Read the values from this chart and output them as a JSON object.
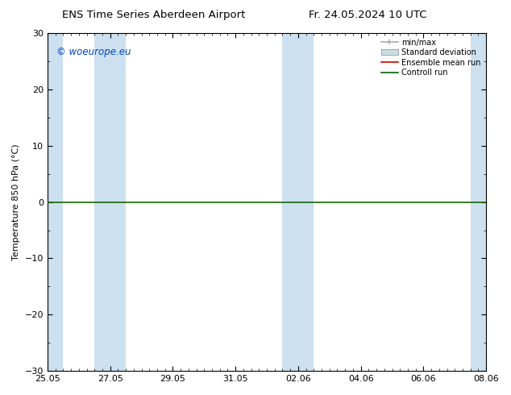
{
  "title_left": "ENS Time Series Aberdeen Airport",
  "title_right": "Fr. 24.05.2024 10 UTC",
  "ylabel": "Temperature 850 hPa (°C)",
  "ylim": [
    -30,
    30
  ],
  "yticks": [
    -30,
    -20,
    -10,
    0,
    10,
    20,
    30
  ],
  "xtick_labels": [
    "25.05",
    "27.05",
    "29.05",
    "31.05",
    "02.06",
    "04.06",
    "06.06",
    "08.06"
  ],
  "xtick_positions": [
    0,
    2,
    4,
    6,
    8,
    10,
    12,
    14
  ],
  "xlim": [
    0,
    14
  ],
  "watermark": "© woeurope.eu",
  "band_color": "#cce0f0",
  "background_color": "#ffffff",
  "zero_line_color": "#1a6600",
  "legend_items": [
    {
      "label": "min/max",
      "color": "#aaaaaa",
      "type": "errorbar"
    },
    {
      "label": "Standard deviation",
      "color": "#cccccc",
      "type": "box"
    },
    {
      "label": "Ensemble mean run",
      "color": "#cc0000",
      "type": "line"
    },
    {
      "label": "Controll run",
      "color": "#006600",
      "type": "line"
    }
  ],
  "band_starts": [
    -0.5,
    1.5,
    7.5,
    13.5
  ],
  "band_ends": [
    0.5,
    2.5,
    8.5,
    14.5
  ]
}
